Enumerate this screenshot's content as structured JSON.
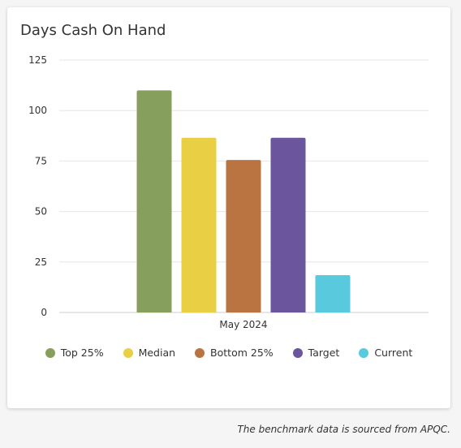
{
  "card": {
    "title": "Days Cash On Hand"
  },
  "footnote": "The benchmark data is sourced from APQC.",
  "chart_data": {
    "type": "bar",
    "categories": [
      "May 2024"
    ],
    "series": [
      {
        "name": "Top 25%",
        "values": [
          110
        ],
        "color": "#879f5c"
      },
      {
        "name": "Median",
        "values": [
          86.5
        ],
        "color": "#e9cf43"
      },
      {
        "name": "Bottom 25%",
        "values": [
          75.5
        ],
        "color": "#b97441"
      },
      {
        "name": "Target",
        "values": [
          86.5
        ],
        "color": "#6b559c"
      },
      {
        "name": "Current",
        "values": [
          18.5
        ],
        "color": "#59c9de"
      }
    ],
    "yticks": [
      "0",
      "25",
      "50",
      "75",
      "100",
      "125"
    ],
    "ylim": [
      0,
      125
    ],
    "grid": true,
    "legend": "bottom"
  }
}
